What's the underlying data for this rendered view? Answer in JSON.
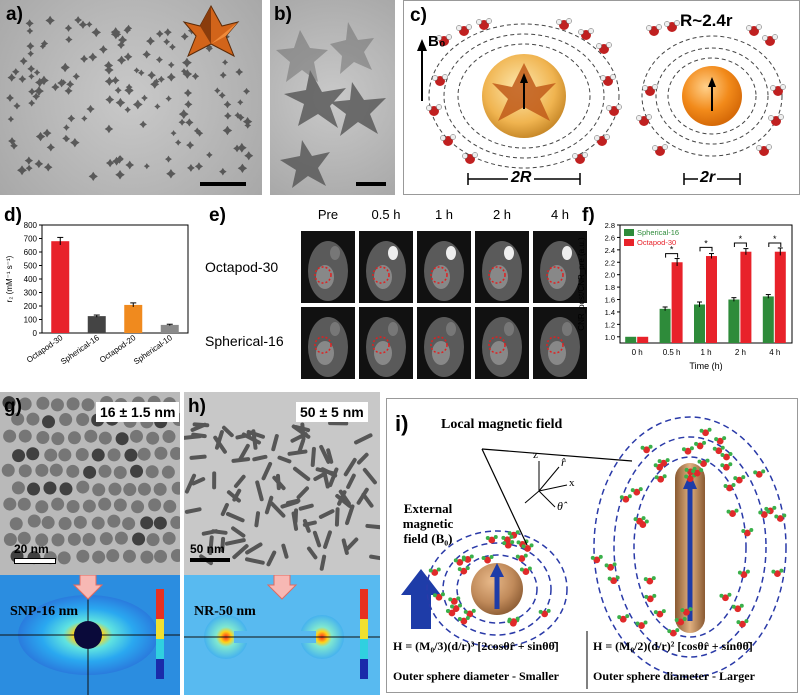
{
  "panels": {
    "a": {
      "label": "a)"
    },
    "b": {
      "label": "b)"
    },
    "c": {
      "label": "c)",
      "field_label": "B₀",
      "ratio_text": "R~2.4r",
      "big_radius_label": "2R",
      "small_radius_label": "2r"
    },
    "d": {
      "label": "d)"
    },
    "e": {
      "label": "e)",
      "columns": [
        "Pre",
        "0.5 h",
        "1 h",
        "2 h",
        "4 h"
      ],
      "rows": [
        "Octapod-30",
        "Spherical-16"
      ]
    },
    "f": {
      "label": "f)"
    },
    "g": {
      "label": "g)",
      "size_text": "16 ± 1.5 nm",
      "scale_text": "20 nm",
      "sim_label": "SNP-16 nm"
    },
    "h": {
      "label": "h)",
      "size_text": "50 ± 5 nm",
      "scale_text": "50 nm",
      "sim_label": "NR-50 nm"
    },
    "i": {
      "label": "i)",
      "local_field": "Local magnetic field",
      "external_field": "External magnetic field (B₀)",
      "axis_z": "z",
      "axis_x": "x",
      "axis_r": "r̂",
      "axis_theta": "θ̂",
      "eq_left": "H = (M₀/3)(d/r)³ [2cosθr̂ + sinθθ̂]",
      "eq_right": "H = (M₀/2)(d/r)² [cosθr̂ + sinθθ̂]",
      "caption_left": "Outer sphere diameter - Smaller",
      "caption_right": "Outer sphere diameter - Larger"
    }
  },
  "chart_data": [
    {
      "panel": "d",
      "type": "bar",
      "categories": [
        "Octapod-30",
        "Spherical-16",
        "Octapod-20",
        "Spherical-10"
      ],
      "values": [
        680,
        125,
        208,
        60
      ],
      "errors": [
        28,
        8,
        15,
        5
      ],
      "colors": [
        "#e8222a",
        "#444444",
        "#f08a1e",
        "#8a8a8a"
      ],
      "ylabel": "r₂ (mM⁻¹ s⁻¹)",
      "ylim": [
        0,
        800
      ],
      "yticks": [
        0,
        100,
        200,
        300,
        400,
        500,
        600,
        700,
        800
      ]
    },
    {
      "panel": "f",
      "type": "bar",
      "categories": [
        "0 h",
        "0.5 h",
        "1 h",
        "2 h",
        "4 h"
      ],
      "series": [
        {
          "name": "Spherical-16",
          "color": "#2e8b3a",
          "values": [
            1.0,
            1.45,
            1.52,
            1.6,
            1.65
          ],
          "errors": [
            0,
            0.03,
            0.04,
            0.03,
            0.03
          ]
        },
        {
          "name": "Octapod-30",
          "color": "#e8222a",
          "values": [
            1.0,
            2.2,
            2.3,
            2.37,
            2.37
          ],
          "errors": [
            0,
            0.06,
            0.04,
            0.05,
            0.06
          ]
        }
      ],
      "significance": [
        "",
        "*",
        "*",
        "*",
        "*"
      ],
      "xlabel": "Time (h)",
      "ylabel": "CNR_post/CNR_pre (a.u.)",
      "ylim": [
        0.9,
        2.8
      ],
      "yticks": [
        1.0,
        1.2,
        1.4,
        1.6,
        1.8,
        2.0,
        2.2,
        2.4,
        2.6,
        2.8
      ],
      "legend": "top-left"
    }
  ]
}
